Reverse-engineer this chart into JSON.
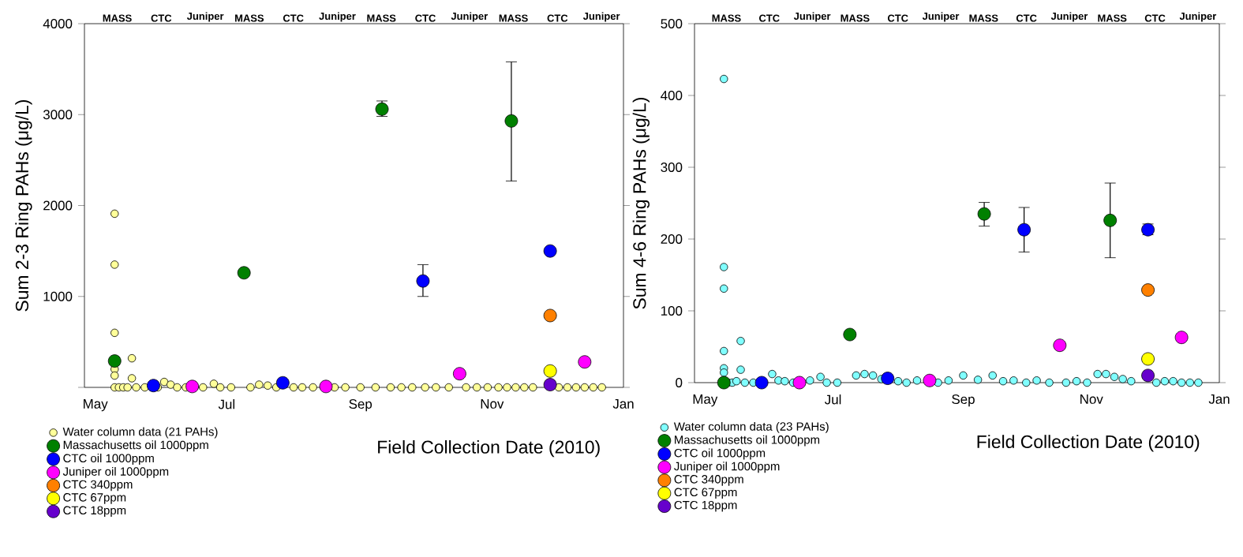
{
  "chart_data": [
    {
      "type": "scatter",
      "xlabel": "Field Collection Date (2010)",
      "ylabel": "Sum 2-3 Ring PAHs (μg/L)",
      "xlim": [
        "2010-04-26",
        "2011-01-01"
      ],
      "ylim": [
        0,
        4000
      ],
      "xticks": [
        {
          "value": "2010-05-01",
          "label": "May"
        },
        {
          "value": "2010-07-01",
          "label": "Jul"
        },
        {
          "value": "2010-09-01",
          "label": "Sep"
        },
        {
          "value": "2010-11-01",
          "label": "Nov"
        },
        {
          "value": "2011-01-01",
          "label": "Jan"
        }
      ],
      "yticks": [
        {
          "value": 0,
          "label": null
        },
        1000,
        2000,
        3000,
        4000
      ],
      "marker": "circle",
      "legend": "bottom left",
      "series": [
        {
          "name": "Water column data (21 PAHs)",
          "color": "#ffff99",
          "x": [
            "2010-05-10",
            "2010-05-10",
            "2010-05-10",
            "2010-05-10",
            "2010-05-10",
            "2010-05-18",
            "2010-05-18",
            "2010-05-10",
            "2010-05-12",
            "2010-05-14",
            "2010-05-16",
            "2010-05-20",
            "2010-05-24",
            "2010-05-30",
            "2010-06-02",
            "2010-06-05",
            "2010-06-08",
            "2010-06-12",
            "2010-06-20",
            "2010-06-25",
            "2010-06-28",
            "2010-07-03",
            "2010-07-12",
            "2010-07-16",
            "2010-07-20",
            "2010-07-24",
            "2010-08-01",
            "2010-08-05",
            "2010-08-10",
            "2010-08-20",
            "2010-08-25",
            "2010-09-01",
            "2010-09-08",
            "2010-09-15",
            "2010-09-20",
            "2010-09-25",
            "2010-10-01",
            "2010-10-06",
            "2010-10-12",
            "2010-10-20",
            "2010-10-25",
            "2010-10-30",
            "2010-11-04",
            "2010-11-08",
            "2010-11-12",
            "2010-11-16",
            "2010-11-20",
            "2010-12-02",
            "2010-12-06",
            "2010-12-10",
            "2010-12-14",
            "2010-12-18",
            "2010-12-22"
          ],
          "values": [
            1910,
            1350,
            600,
            200,
            130,
            320,
            100,
            0,
            0,
            0,
            0,
            0,
            0,
            0,
            60,
            30,
            0,
            0,
            0,
            40,
            0,
            0,
            0,
            30,
            20,
            0,
            0,
            0,
            0,
            0,
            0,
            0,
            0,
            0,
            0,
            0,
            0,
            0,
            0,
            0,
            0,
            0,
            0,
            0,
            0,
            0,
            0,
            0,
            0,
            0,
            0,
            0,
            0
          ]
        },
        {
          "name": "Massachusetts oil 1000ppm",
          "color": "#008000",
          "x": [
            "2010-05-10",
            "2010-07-09",
            "2010-09-11",
            "2010-11-10"
          ],
          "values": [
            290,
            1260,
            3060,
            2930
          ],
          "errors": [
            null,
            null,
            [
              2980,
              3150
            ],
            [
              2270,
              3580
            ]
          ]
        },
        {
          "name": "CTC oil 1000ppm",
          "color": "#0000ff",
          "x": [
            "2010-05-28",
            "2010-07-27",
            "2010-09-30",
            "2010-11-28"
          ],
          "values": [
            20,
            50,
            1170,
            1500
          ],
          "errors": [
            null,
            null,
            [
              1000,
              1350
            ],
            null
          ]
        },
        {
          "name": "Juniper oil 1000ppm",
          "color": "#ff00ff",
          "x": [
            "2010-06-15",
            "2010-08-16",
            "2010-10-17",
            "2010-12-14"
          ],
          "values": [
            10,
            10,
            150,
            280
          ]
        },
        {
          "name": "CTC 340ppm",
          "color": "#ff8000",
          "x": [
            "2010-11-28"
          ],
          "values": [
            790
          ]
        },
        {
          "name": "CTC 67ppm",
          "color": "#ffff00",
          "x": [
            "2010-11-28"
          ],
          "values": [
            180
          ]
        },
        {
          "name": "CTC 18ppm",
          "color": "#6600cc",
          "x": [
            "2010-11-28"
          ],
          "values": [
            30
          ]
        }
      ],
      "annotations": [
        "MASS",
        "CTC",
        "Juniper",
        "MASS",
        "CTC",
        "Juniper",
        "MASS",
        "CTC",
        "Juniper",
        "MASS",
        "CTC",
        "Juniper"
      ]
    },
    {
      "type": "scatter",
      "xlabel": "Field Collection Date (2010)",
      "ylabel": "Sum 4-6 Ring PAHs (μg/L)",
      "xlim": [
        "2010-04-26",
        "2011-01-01"
      ],
      "ylim": [
        0,
        500
      ],
      "xticks": [
        {
          "value": "2010-05-01",
          "label": "May"
        },
        {
          "value": "2010-07-01",
          "label": "Jul"
        },
        {
          "value": "2010-09-01",
          "label": "Sep"
        },
        {
          "value": "2010-11-01",
          "label": "Nov"
        },
        {
          "value": "2011-01-01",
          "label": "Jan"
        }
      ],
      "yticks": [
        0,
        100,
        200,
        300,
        400,
        500
      ],
      "marker": "circle",
      "legend": "bottom left",
      "series": [
        {
          "name": "Water column data (23 PAHs)",
          "color": "#80ffff",
          "x": [
            "2010-05-10",
            "2010-05-10",
            "2010-05-10",
            "2010-05-10",
            "2010-05-10",
            "2010-05-10",
            "2010-05-18",
            "2010-05-18",
            "2010-05-12",
            "2010-05-14",
            "2010-05-16",
            "2010-05-20",
            "2010-05-24",
            "2010-05-30",
            "2010-06-02",
            "2010-06-05",
            "2010-06-08",
            "2010-06-12",
            "2010-06-20",
            "2010-06-25",
            "2010-06-28",
            "2010-07-03",
            "2010-07-12",
            "2010-07-16",
            "2010-07-20",
            "2010-07-24",
            "2010-08-01",
            "2010-08-05",
            "2010-08-10",
            "2010-08-20",
            "2010-08-25",
            "2010-09-01",
            "2010-09-08",
            "2010-09-15",
            "2010-09-20",
            "2010-09-25",
            "2010-10-01",
            "2010-10-06",
            "2010-10-12",
            "2010-10-20",
            "2010-10-25",
            "2010-10-30",
            "2010-11-04",
            "2010-11-08",
            "2010-11-12",
            "2010-11-16",
            "2010-11-20",
            "2010-12-02",
            "2010-12-06",
            "2010-12-10",
            "2010-12-14",
            "2010-12-18",
            "2010-12-22"
          ],
          "values": [
            423,
            161,
            131,
            44,
            20,
            14,
            58,
            18,
            0,
            0,
            2,
            0,
            0,
            null,
            12,
            3,
            2,
            0,
            3,
            8,
            0,
            0,
            10,
            12,
            10,
            5,
            2,
            0,
            3,
            0,
            3,
            10,
            4,
            10,
            2,
            3,
            0,
            3,
            0,
            0,
            2,
            0,
            12,
            12,
            8,
            5,
            2,
            0,
            2,
            2,
            0,
            0,
            0
          ]
        },
        {
          "name": "Massachusetts oil 1000ppm",
          "color": "#008000",
          "x": [
            "2010-05-10",
            "2010-07-09",
            "2010-09-11",
            "2010-11-10"
          ],
          "values": [
            0,
            67,
            235,
            226
          ],
          "errors": [
            null,
            null,
            [
              218,
              251
            ],
            [
              174,
              278
            ]
          ]
        },
        {
          "name": "CTC oil 1000ppm",
          "color": "#0000ff",
          "x": [
            "2010-05-28",
            "2010-07-27",
            "2010-09-30",
            "2010-11-28"
          ],
          "values": [
            0,
            6,
            213,
            213
          ],
          "errors": [
            null,
            null,
            [
              182,
              244
            ],
            [
              206,
              221
            ]
          ]
        },
        {
          "name": "Juniper oil 1000ppm",
          "color": "#ff00ff",
          "x": [
            "2010-06-15",
            "2010-08-16",
            "2010-10-17",
            "2010-12-14"
          ],
          "values": [
            0,
            3,
            52,
            63
          ]
        },
        {
          "name": "CTC 340ppm",
          "color": "#ff8000",
          "x": [
            "2010-11-28"
          ],
          "values": [
            129
          ]
        },
        {
          "name": "CTC 67ppm",
          "color": "#ffff00",
          "x": [
            "2010-11-28"
          ],
          "values": [
            33
          ]
        },
        {
          "name": "CTC 18ppm",
          "color": "#6600cc",
          "x": [
            "2010-11-28"
          ],
          "values": [
            10
          ]
        }
      ],
      "annotations": [
        "MASS",
        "CTC",
        "Juniper",
        "MASS",
        "CTC",
        "Juniper",
        "MASS",
        "CTC",
        "Juniper",
        "MASS",
        "CTC",
        "Juniper"
      ]
    }
  ]
}
